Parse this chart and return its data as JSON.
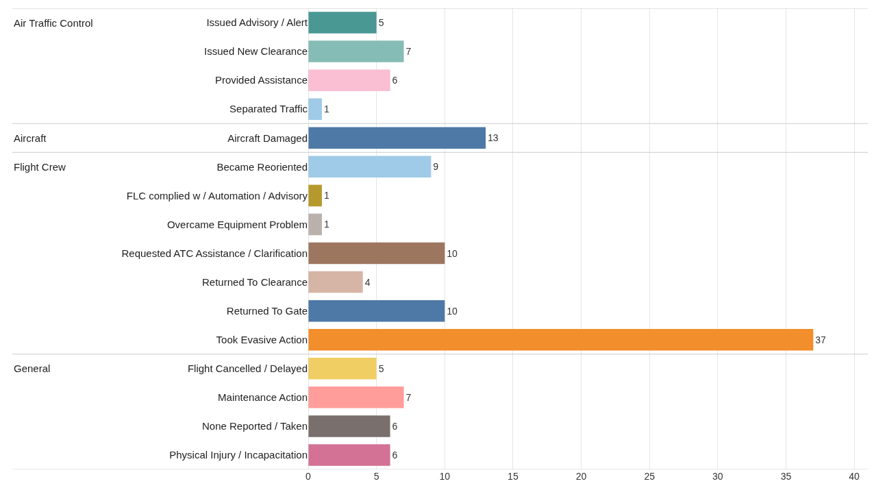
{
  "chart_data": {
    "type": "bar",
    "orientation": "horizontal",
    "categories": [
      "Issued Advisory / Alert",
      "Issued New Clearance",
      "Provided Assistance",
      "Separated Traffic",
      "Aircraft Damaged",
      "Became Reoriented",
      "FLC complied w / Automation / Advisory",
      "Overcame Equipment Problem",
      "Requested ATC Assistance / Clarification",
      "Returned To Clearance",
      "Returned To Gate",
      "Took Evasive Action",
      "Flight Cancelled / Delayed",
      "Maintenance Action",
      "None Reported / Taken",
      "Physical Injury / Incapacitation"
    ],
    "values": [
      5,
      7,
      6,
      1,
      13,
      9,
      1,
      1,
      10,
      4,
      10,
      37,
      5,
      7,
      6,
      6
    ],
    "colors": [
      "#499894",
      "#86bcb6",
      "#fabfd2",
      "#a0cbe8",
      "#4e79a7",
      "#a0cbe8",
      "#b6992d",
      "#bab0ac",
      "#9d7660",
      "#d7b5a6",
      "#4e79a7",
      "#f28e2b",
      "#f1ce63",
      "#ff9d9a",
      "#79706e",
      "#d37295"
    ],
    "xlim": [
      0,
      41
    ],
    "xticks": [
      0,
      5,
      10,
      15,
      20,
      25,
      30,
      35,
      40
    ],
    "grid": "x",
    "data_labels": true,
    "annotations": [
      "Air Traffic Control",
      "Aircraft",
      "Flight Crew",
      "General"
    ]
  }
}
